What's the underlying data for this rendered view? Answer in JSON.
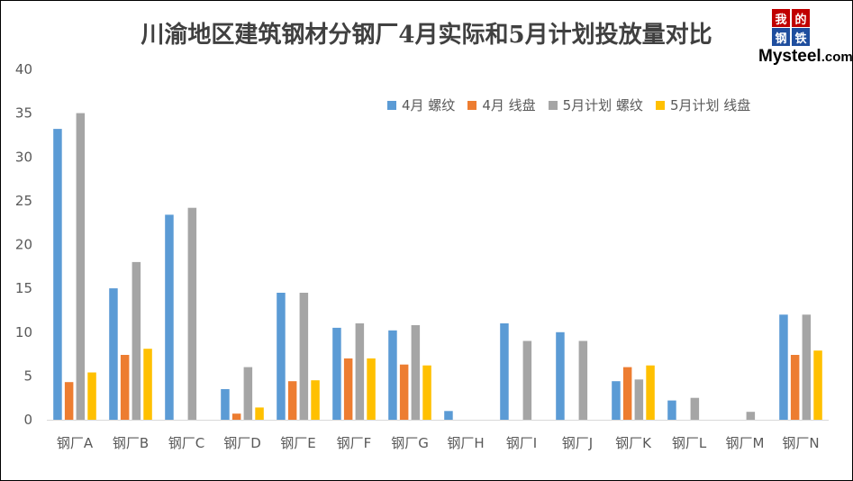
{
  "title": "川渝地区建筑钢材分钢厂4月实际和5月计划投放量对比",
  "logo": {
    "char1": "我",
    "char2": "的",
    "char3": "钢",
    "char4": "铁",
    "text_main": "Mysteel",
    "text_suffix": ".com"
  },
  "chart_data": {
    "type": "bar",
    "title": "川渝地区建筑钢材分钢厂4月实际和5月计划投放量对比",
    "categories": [
      "钢厂A",
      "钢厂B",
      "钢厂C",
      "钢厂D",
      "钢厂E",
      "钢厂F",
      "钢厂G",
      "钢厂H",
      "钢厂I",
      "钢厂J",
      "钢厂K",
      "钢厂L",
      "钢厂M",
      "钢厂N"
    ],
    "ylim": [
      0,
      40
    ],
    "yticks": [
      "0",
      "5",
      "10",
      "15",
      "20",
      "25",
      "30",
      "35",
      "40"
    ],
    "grid": false,
    "legend_position": "top-right",
    "series": [
      {
        "name": "4月 螺纹",
        "color": "#5b9bd5",
        "values": [
          33.2,
          15.0,
          23.4,
          3.5,
          14.5,
          10.5,
          10.2,
          1.0,
          11.0,
          10.0,
          4.4,
          2.2,
          0,
          12.0
        ]
      },
      {
        "name": "4月 线盘",
        "color": "#ed7d31",
        "values": [
          4.3,
          7.4,
          0,
          0.7,
          4.4,
          7.0,
          6.3,
          0,
          0,
          0,
          6.0,
          0,
          0,
          7.4
        ]
      },
      {
        "name": "5月计划 螺纹",
        "color": "#a5a5a5",
        "values": [
          35.0,
          18.0,
          24.2,
          6.0,
          14.5,
          11.0,
          10.8,
          0,
          9.0,
          9.0,
          4.6,
          2.5,
          0.9,
          12.0
        ]
      },
      {
        "name": "5月计划 线盘",
        "color": "#ffc000",
        "values": [
          5.4,
          8.1,
          0,
          1.4,
          4.5,
          7.0,
          6.2,
          0,
          0,
          0,
          6.2,
          0,
          0,
          7.9
        ]
      }
    ]
  }
}
